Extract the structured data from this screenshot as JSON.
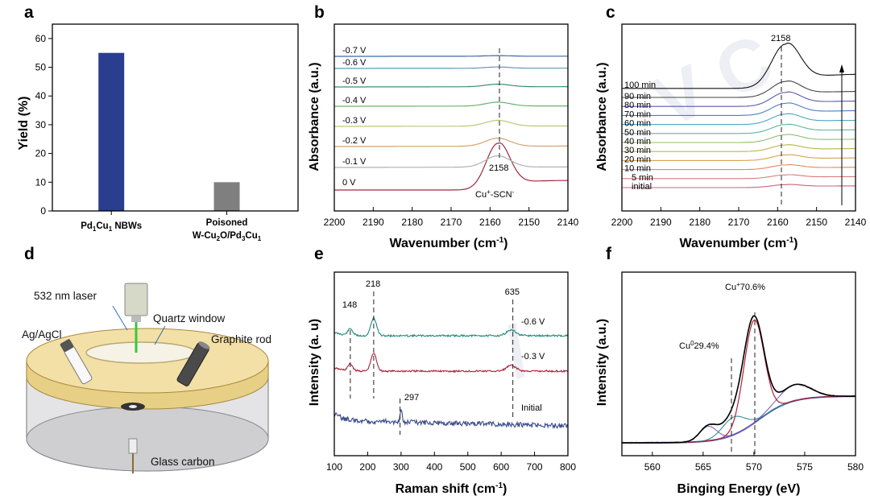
{
  "chart_data": [
    {
      "panel": "a",
      "type": "bar",
      "categories": [
        "Pd1Cu1 NBWs",
        "Poisoned W-Cu2O/Pd3Cu1"
      ],
      "category_lines": [
        [
          "Pd1Cu1 NBWs"
        ],
        [
          "Poisoned",
          "W-Cu2O/Pd3Cu1"
        ]
      ],
      "values": [
        55,
        10
      ],
      "colors": [
        "#2a3d8f",
        "#7f7f7f"
      ],
      "ylabel": "Yield (%)",
      "ylim": [
        0,
        65
      ],
      "yticks": [
        0,
        10,
        20,
        30,
        40,
        50,
        60
      ]
    },
    {
      "panel": "b",
      "type": "line",
      "title": "",
      "xlabel": "Wavenumber (cm-1)",
      "ylabel": "Absorbance (a.u.)",
      "xlim": [
        2200,
        2140
      ],
      "xticks": [
        2200,
        2190,
        2180,
        2170,
        2160,
        2150,
        2140
      ],
      "peak_position": 2158,
      "series": [
        {
          "name": "0 V",
          "peak": 1.0,
          "color": "#a0283c"
        },
        {
          "name": "-0.1 V",
          "peak": 0.35,
          "color": "#b0b0b0"
        },
        {
          "name": "-0.2 V",
          "peak": 0.25,
          "color": "#d4a373"
        },
        {
          "name": "-0.3 V",
          "peak": 0.18,
          "color": "#b8c978"
        },
        {
          "name": "-0.4 V",
          "peak": 0.12,
          "color": "#6cb36c"
        },
        {
          "name": "-0.5 V",
          "peak": 0.08,
          "color": "#3c8f6c"
        },
        {
          "name": "-0.6 V",
          "peak": 0.04,
          "color": "#5a9bb8"
        },
        {
          "name": "-0.7 V",
          "peak": 0.02,
          "color": "#3b67a8"
        }
      ],
      "annotations": [
        "2158",
        "Cu+-SCN-"
      ]
    },
    {
      "panel": "c",
      "type": "line",
      "xlabel": "Wavenumber (cm-1)",
      "ylabel": "Absorbance (a.u.)",
      "xlim": [
        2200,
        2140
      ],
      "xticks": [
        2200,
        2190,
        2180,
        2170,
        2160,
        2150,
        2140
      ],
      "peak_position": 2158,
      "series": [
        {
          "name": "initial",
          "peak": 0.02,
          "color": "#c86478"
        },
        {
          "name": "5 min",
          "peak": 0.05,
          "color": "#d97b7b"
        },
        {
          "name": "10 min",
          "peak": 0.09,
          "color": "#e08a5a"
        },
        {
          "name": "20 min",
          "peak": 0.13,
          "color": "#d9a24f"
        },
        {
          "name": "30 min",
          "peak": 0.17,
          "color": "#b8b84a"
        },
        {
          "name": "40 min",
          "peak": 0.22,
          "color": "#8cc06a"
        },
        {
          "name": "50 min",
          "peak": 0.27,
          "color": "#5bb89a"
        },
        {
          "name": "60 min",
          "peak": 0.33,
          "color": "#4aa8c0"
        },
        {
          "name": "70 min",
          "peak": 0.4,
          "color": "#4a7fc0"
        },
        {
          "name": "80 min",
          "peak": 0.48,
          "color": "#5a5ab0"
        },
        {
          "name": "90 min",
          "peak": 0.56,
          "color": "#444444"
        },
        {
          "name": "100 min",
          "peak": 1.0,
          "color": "#111111"
        }
      ],
      "annotations": [
        "2158"
      ]
    },
    {
      "panel": "e",
      "type": "line",
      "xlabel": "Raman shift (cm-1)",
      "ylabel": "Intensity (a. u)",
      "xlim": [
        100,
        800
      ],
      "xticks": [
        100,
        200,
        300,
        400,
        500,
        600,
        700,
        800
      ],
      "series": [
        {
          "name": "-0.6 V",
          "peaks": [
            148,
            218,
            635
          ],
          "color": "#1f8a7a"
        },
        {
          "name": "-0.3 V",
          "peaks": [
            148,
            218,
            635
          ],
          "color": "#b0203a"
        },
        {
          "name": "Initial",
          "peaks": [
            297,
            635
          ],
          "color": "#3a4a8c"
        }
      ],
      "annotations": [
        "148",
        "218",
        "635",
        "297"
      ]
    },
    {
      "panel": "f",
      "type": "line",
      "xlabel": "Binging Energy (eV)",
      "ylabel": "Intensity (a.u.)",
      "xlim": [
        557,
        580
      ],
      "xticks": [
        560,
        565,
        570,
        575,
        580
      ],
      "components": [
        {
          "name": "Cu+",
          "center": 570,
          "percent": 70.6
        },
        {
          "name": "Cu0",
          "center": 568,
          "percent": 29.4
        }
      ],
      "annotations": [
        "Cu+ 70.6%",
        "Cu0 29.4%"
      ]
    }
  ],
  "panels": {
    "a": {
      "label": "a"
    },
    "b": {
      "label": "b",
      "peak": "2158",
      "peak_label": "Cu+-SCN-"
    },
    "c": {
      "label": "c",
      "peak": "2158"
    },
    "d": {
      "label": "d",
      "labels": {
        "laser": "532 nm laser",
        "window": "Quartz window",
        "ref": "Ag/AgCl",
        "counter": "Graphite rod",
        "working": "Glass carbon"
      }
    },
    "e": {
      "label": "e"
    },
    "f": {
      "label": "f",
      "cu_plus": "70.6%",
      "cu_zero": "29.4%"
    }
  }
}
